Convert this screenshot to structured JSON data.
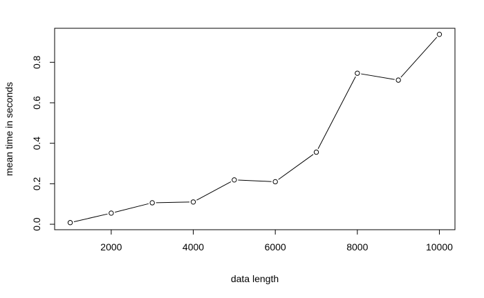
{
  "chart_data": {
    "type": "line",
    "title": "",
    "xlabel": "data length",
    "ylabel": "mean time in seconds",
    "xlim": [
      620,
      10380
    ],
    "ylim": [
      -0.027,
      0.968
    ],
    "xticks": [
      2000,
      4000,
      6000,
      8000,
      10000
    ],
    "xtick_labels": [
      "2000",
      "4000",
      "6000",
      "8000",
      "10000"
    ],
    "yticks": [
      0,
      0.2,
      0.4,
      0.6,
      0.8
    ],
    "ytick_labels": [
      "0.0",
      "0.2",
      "0.4",
      "0.6",
      "0.8"
    ],
    "grid": false,
    "series": [
      {
        "x": [
          1000,
          2000,
          3000,
          4000,
          5000,
          6000,
          7000,
          8000,
          9000,
          10000
        ],
        "y": [
          0.008,
          0.055,
          0.106,
          0.11,
          0.219,
          0.21,
          0.356,
          0.746,
          0.712,
          0.938
        ],
        "color": "#000000",
        "marker": "open-circle"
      }
    ]
  }
}
